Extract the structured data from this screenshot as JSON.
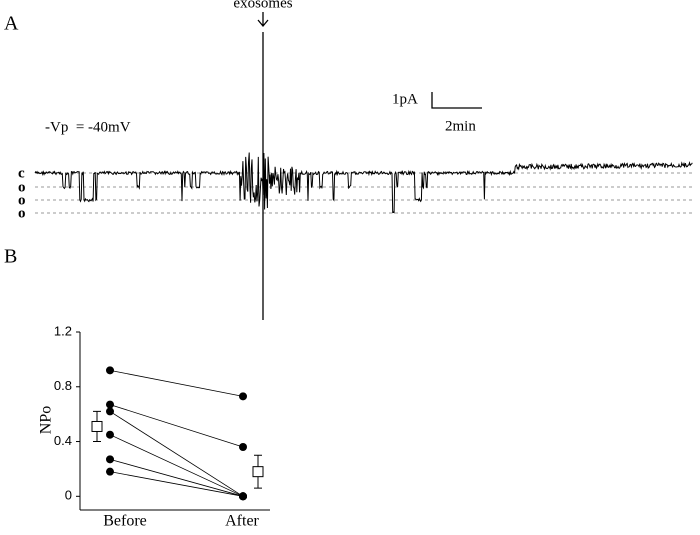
{
  "panel_a": {
    "label": "A",
    "annotation": "exosomes",
    "scale_current": "1pA",
    "scale_time": "2min",
    "voltage": "-Vp  = -40mV",
    "levels": [
      "c",
      "o",
      "o",
      "o"
    ]
  },
  "panel_b_label": "B",
  "chart_data": {
    "type": "paired",
    "ylabel": "NPo",
    "categories": [
      "Before",
      "After"
    ],
    "series": [
      {
        "color": "#000000",
        "values": [
          0.92,
          0.73
        ]
      },
      {
        "color": "#000000",
        "values": [
          0.67,
          0.36
        ]
      },
      {
        "color": "#000000",
        "values": [
          0.62,
          0
        ]
      },
      {
        "color": "#000000",
        "values": [
          0.45,
          0
        ]
      },
      {
        "color": "#000000",
        "values": [
          0.27,
          0
        ]
      },
      {
        "color": "#000000",
        "values": [
          0.18,
          0
        ]
      }
    ],
    "means": [
      0.51,
      0.18
    ],
    "errors": [
      0.11,
      0.12
    ],
    "ylim": [
      -0.1,
      1.2
    ],
    "yticks": [
      0,
      0.4,
      0.8,
      1.2
    ]
  }
}
